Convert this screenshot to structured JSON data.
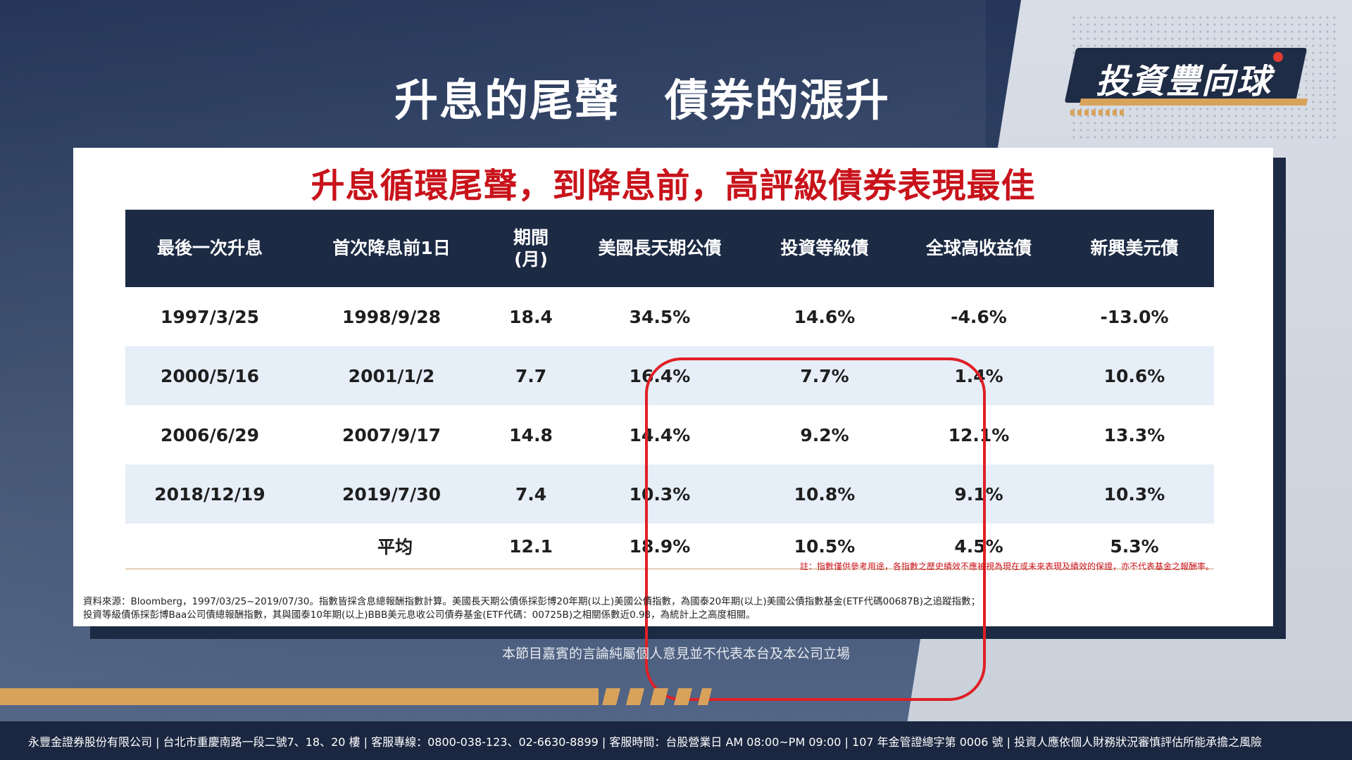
{
  "header": {
    "title": "升息的尾聲　債券的漲升",
    "logo_text": "投資豐向球"
  },
  "card": {
    "subtitle": "升息循環尾聲，到降息前，高評級債券表現最佳",
    "table": {
      "columns": [
        "最後一次升息",
        "首次降息前1日",
        "期間\n(月)",
        "美國長天期公債",
        "投資等級債",
        "全球高收益債",
        "新興美元債"
      ],
      "rows": [
        [
          "1997/3/25",
          "1998/9/28",
          "18.4",
          "34.5%",
          "14.6%",
          "-4.6%",
          "-13.0%"
        ],
        [
          "2000/5/16",
          "2001/1/2",
          "7.7",
          "16.4%",
          "7.7%",
          "1.4%",
          "10.6%"
        ],
        [
          "2006/6/29",
          "2007/9/17",
          "14.8",
          "14.4%",
          "9.2%",
          "12.1%",
          "13.3%"
        ],
        [
          "2018/12/19",
          "2019/7/30",
          "7.4",
          "10.3%",
          "10.8%",
          "9.1%",
          "10.3%"
        ]
      ],
      "average": {
        "label": "平均",
        "values": [
          "12.1",
          "18.9%",
          "10.5%",
          "4.5%",
          "5.3%"
        ]
      }
    },
    "note": "註：指數僅供參考用途，各指數之歷史績效不應被視為現在或未來表現及績效的保證，亦不代表基金之報酬率。",
    "source_line1": "資料來源：Bloomberg，1997/03/25~2019/07/30。指數皆採含息總報酬指數計算。美國長天期公債係採彭博20年期(以上)美國公債指數，為國泰20年期(以上)美國公債指數基金(ETF代碼00687B)之追蹤指數；",
    "source_line2": "投資等級債係採彭博Baa公司債總報酬指數，其與國泰10年期(以上)BBB美元息收公司債券基金(ETF代碼：00725B)之相關係數近0.98，為統計上之高度相關。"
  },
  "disclaimer": "本節目嘉賓的言論純屬個人意見並不代表本台及本公司立場",
  "footer": {
    "text": "永豐金證券股份有限公司 | 台北市重慶南路一段二號7、18、20 樓 | 客服專線：0800-038-123、02-6630-8899 | 客服時間：台股營業日 AM 08:00~PM 09:00 | 107 年金管證總字第 0006 號 | 投資人應依個人財務狀況審慎評估所能承擔之風險"
  },
  "colors": {
    "navy": "#1c2a44",
    "accent_red": "#c8131b",
    "gold": "#d9a25b",
    "row_alt": "#e6eef7"
  }
}
